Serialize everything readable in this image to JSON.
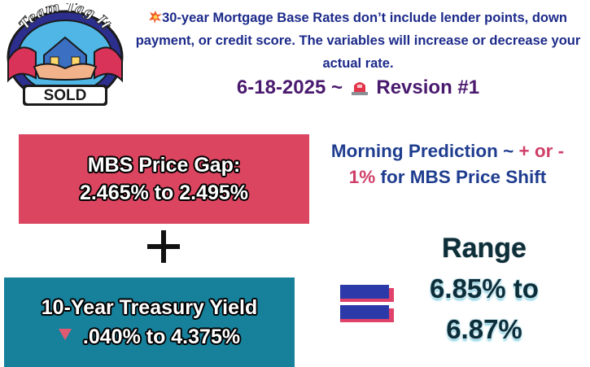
{
  "logo": {
    "text_top": "Team Tag It",
    "text_bottom": "SOLD"
  },
  "header": {
    "note_icon": "collision-icon",
    "note": "30-year Mortgage Base Rates don’t include lender points, down payment, or credit score. The variables will increase or decrease your actual rate.",
    "date": "6-18-2025 ~",
    "revision_icon": "siren-icon",
    "revision": "Revsion #1"
  },
  "mbs": {
    "label": "MBS Price Gap:",
    "value": "2.465% to 2.495%",
    "color": "#dc4560"
  },
  "treasury": {
    "label": "10-Year Treasury Yield",
    "direction_icon": "down-triangle-icon",
    "value": ".040% to 4.375%",
    "color": "#17819c"
  },
  "prediction": {
    "lead": "Morning Prediction ~ ",
    "accent_1": "+ or -",
    "accent_2": "1%",
    "trail": " for MBS Price Shift"
  },
  "range": {
    "title": "Range",
    "value_line1": "6.85% to",
    "value_line2": "6.87%"
  }
}
